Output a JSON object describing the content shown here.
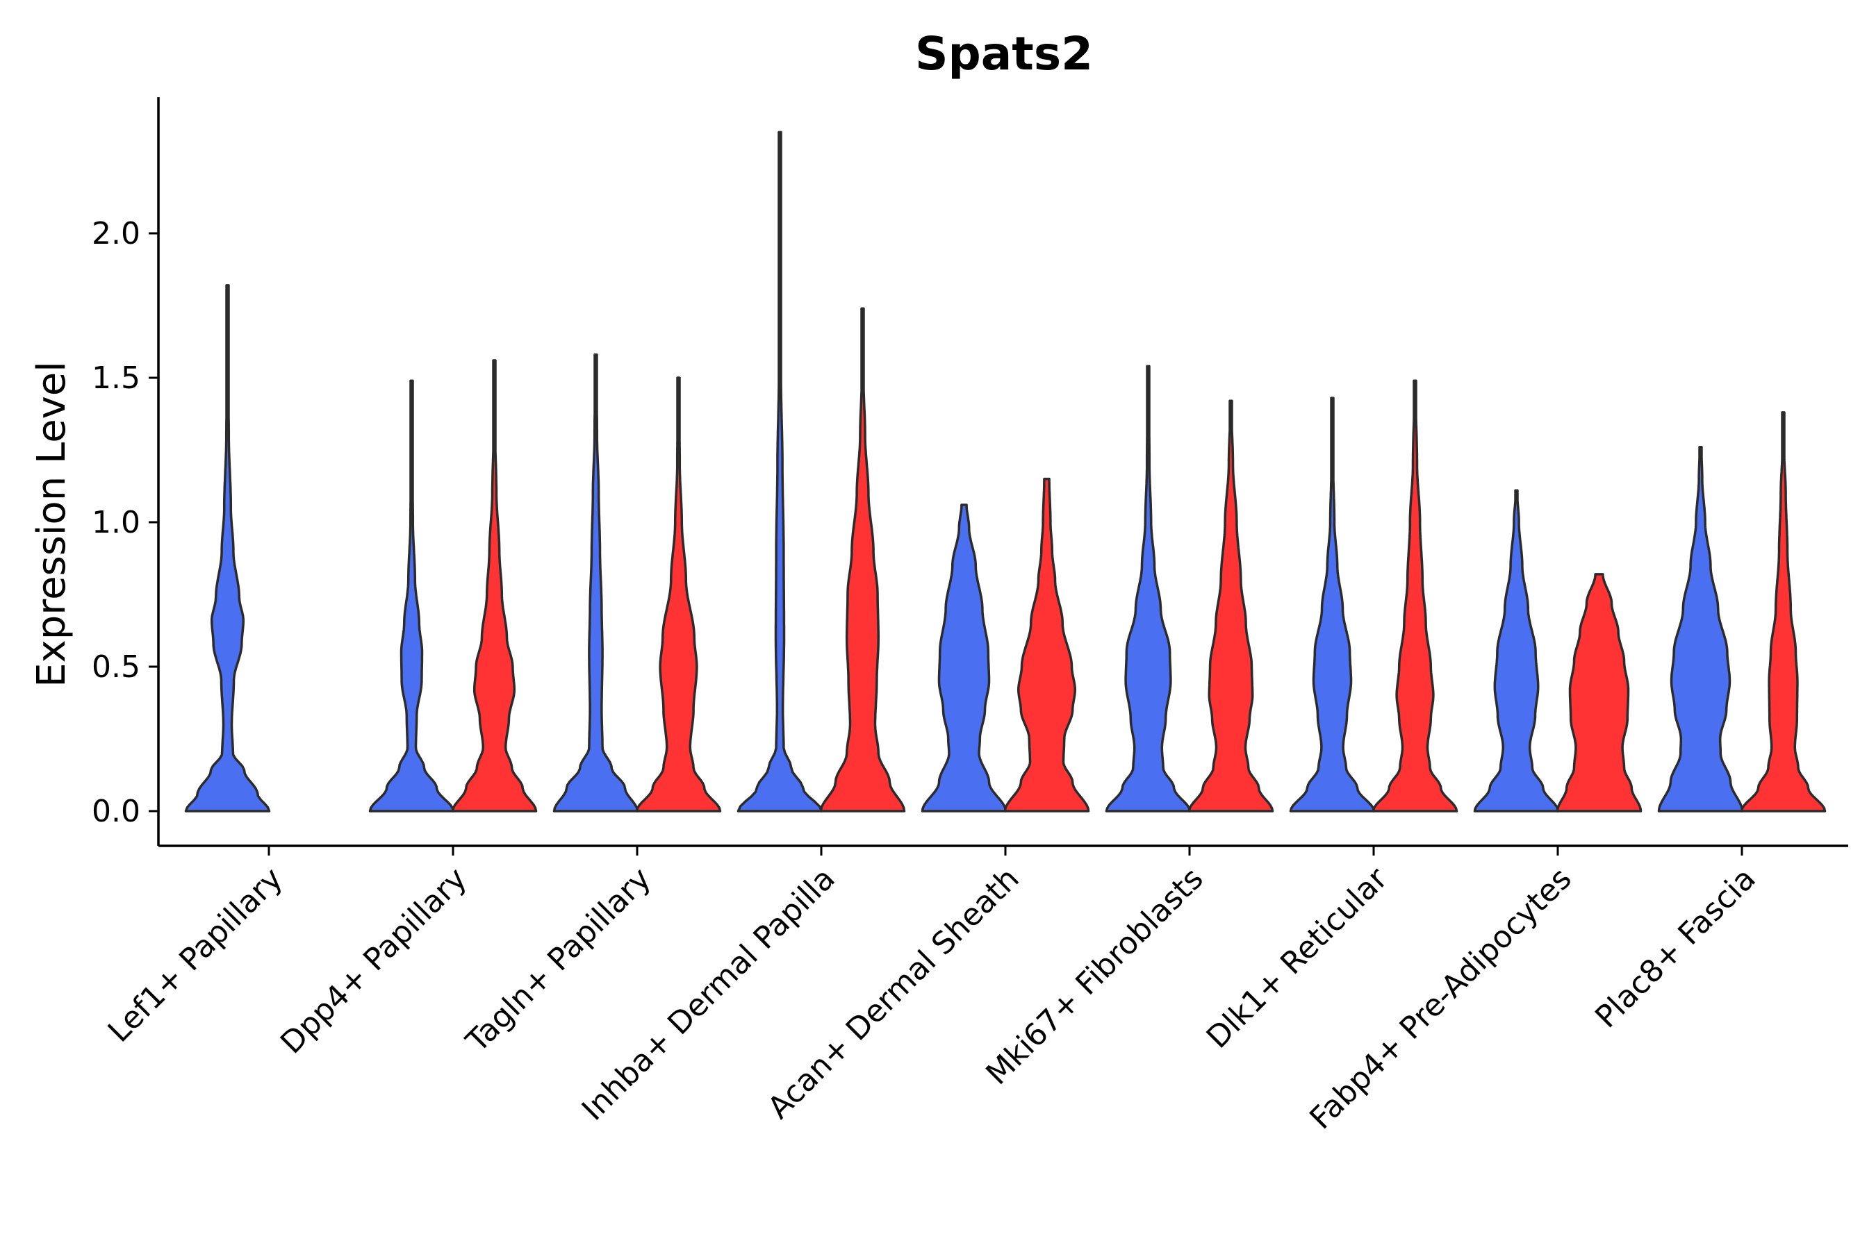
{
  "chart_data": {
    "type": "violin",
    "title": "Spats2",
    "ylabel": "Expression Level",
    "xlabel": "",
    "ylim": [
      -0.12,
      2.48
    ],
    "yticks": [
      0.0,
      0.5,
      1.0,
      1.5,
      2.0
    ],
    "ytick_labels": [
      "0.0",
      "0.5",
      "1.0",
      "1.5",
      "2.0"
    ],
    "grid": false,
    "legend": "none",
    "colors": {
      "group1": "#4a6ff0",
      "group2": "#ff3333",
      "outline": "#2b2b2b"
    },
    "categories": [
      "Lef1+ Papillary",
      "Dpp4+ Papillary",
      "Tagln+ Papillary",
      "Inhba+ Dermal Papilla",
      "Acan+ Dermal Sheath",
      "Mki67+ Fibroblasts",
      "Dlk1+ Reticular",
      "Fabp4+ Pre-Adipocytes",
      "Plac8+ Fascia"
    ],
    "series": [
      {
        "name": "group1",
        "color": "#4a6ff0",
        "violins": [
          {
            "max": 1.82,
            "profile": [
              [
                0.0,
                1.0
              ],
              [
                0.06,
                0.72
              ],
              [
                0.14,
                0.4
              ],
              [
                0.2,
                0.13
              ],
              [
                0.3,
                0.1
              ],
              [
                0.45,
                0.15
              ],
              [
                0.58,
                0.34
              ],
              [
                0.66,
                0.38
              ],
              [
                0.74,
                0.28
              ],
              [
                0.9,
                0.14
              ],
              [
                1.05,
                0.08
              ],
              [
                1.3,
                0.03
              ],
              [
                1.5,
                0.012
              ],
              [
                1.82,
                0.006
              ]
            ]
          },
          {
            "max": 1.49,
            "profile": [
              [
                0.0,
                1.0
              ],
              [
                0.08,
                0.6
              ],
              [
                0.15,
                0.3
              ],
              [
                0.22,
                0.1
              ],
              [
                0.33,
                0.12
              ],
              [
                0.45,
                0.24
              ],
              [
                0.55,
                0.25
              ],
              [
                0.65,
                0.18
              ],
              [
                0.8,
                0.08
              ],
              [
                1.0,
                0.03
              ],
              [
                1.2,
                0.015
              ],
              [
                1.49,
                0.006
              ]
            ]
          },
          {
            "max": 1.58,
            "profile": [
              [
                0.0,
                1.0
              ],
              [
                0.08,
                0.7
              ],
              [
                0.15,
                0.38
              ],
              [
                0.22,
                0.16
              ],
              [
                0.35,
                0.14
              ],
              [
                0.55,
                0.16
              ],
              [
                0.7,
                0.14
              ],
              [
                0.9,
                0.1
              ],
              [
                1.1,
                0.07
              ],
              [
                1.3,
                0.03
              ],
              [
                1.58,
                0.006
              ]
            ]
          },
          {
            "max": 2.35,
            "profile": [
              [
                0.0,
                1.0
              ],
              [
                0.08,
                0.55
              ],
              [
                0.15,
                0.27
              ],
              [
                0.22,
                0.09
              ],
              [
                0.35,
                0.07
              ],
              [
                0.6,
                0.1
              ],
              [
                0.9,
                0.09
              ],
              [
                1.2,
                0.06
              ],
              [
                1.5,
                0.025
              ],
              [
                1.8,
                0.01
              ],
              [
                2.35,
                0.004
              ]
            ]
          },
          {
            "max": 1.06,
            "profile": [
              [
                0.0,
                1.0
              ],
              [
                0.1,
                0.6
              ],
              [
                0.2,
                0.36
              ],
              [
                0.25,
                0.38
              ],
              [
                0.35,
                0.5
              ],
              [
                0.45,
                0.6
              ],
              [
                0.55,
                0.58
              ],
              [
                0.7,
                0.44
              ],
              [
                0.85,
                0.28
              ],
              [
                0.98,
                0.12
              ],
              [
                1.06,
                0.06
              ]
            ]
          },
          {
            "max": 1.54,
            "profile": [
              [
                0.0,
                1.0
              ],
              [
                0.08,
                0.62
              ],
              [
                0.15,
                0.36
              ],
              [
                0.22,
                0.33
              ],
              [
                0.32,
                0.42
              ],
              [
                0.45,
                0.54
              ],
              [
                0.55,
                0.52
              ],
              [
                0.7,
                0.3
              ],
              [
                0.85,
                0.15
              ],
              [
                1.0,
                0.07
              ],
              [
                1.2,
                0.03
              ],
              [
                1.54,
                0.006
              ]
            ]
          },
          {
            "max": 1.43,
            "profile": [
              [
                0.0,
                1.0
              ],
              [
                0.08,
                0.6
              ],
              [
                0.15,
                0.33
              ],
              [
                0.22,
                0.26
              ],
              [
                0.33,
                0.35
              ],
              [
                0.45,
                0.45
              ],
              [
                0.55,
                0.42
              ],
              [
                0.7,
                0.25
              ],
              [
                0.85,
                0.12
              ],
              [
                1.0,
                0.05
              ],
              [
                1.2,
                0.02
              ],
              [
                1.43,
                0.006
              ]
            ]
          },
          {
            "max": 1.11,
            "profile": [
              [
                0.0,
                1.0
              ],
              [
                0.08,
                0.64
              ],
              [
                0.15,
                0.38
              ],
              [
                0.22,
                0.32
              ],
              [
                0.33,
                0.45
              ],
              [
                0.43,
                0.52
              ],
              [
                0.55,
                0.46
              ],
              [
                0.7,
                0.28
              ],
              [
                0.85,
                0.14
              ],
              [
                1.0,
                0.06
              ],
              [
                1.11,
                0.012
              ]
            ]
          },
          {
            "max": 1.26,
            "profile": [
              [
                0.0,
                1.0
              ],
              [
                0.1,
                0.72
              ],
              [
                0.2,
                0.48
              ],
              [
                0.25,
                0.47
              ],
              [
                0.35,
                0.62
              ],
              [
                0.45,
                0.7
              ],
              [
                0.55,
                0.64
              ],
              [
                0.7,
                0.42
              ],
              [
                0.85,
                0.24
              ],
              [
                1.0,
                0.11
              ],
              [
                1.15,
                0.04
              ],
              [
                1.26,
                0.02
              ]
            ]
          }
        ]
      },
      {
        "name": "group2",
        "color": "#ff3333",
        "violins": [
          null,
          {
            "max": 1.56,
            "profile": [
              [
                0.0,
                1.0
              ],
              [
                0.08,
                0.68
              ],
              [
                0.15,
                0.42
              ],
              [
                0.22,
                0.27
              ],
              [
                0.32,
                0.35
              ],
              [
                0.42,
                0.48
              ],
              [
                0.5,
                0.44
              ],
              [
                0.6,
                0.3
              ],
              [
                0.75,
                0.18
              ],
              [
                0.9,
                0.12
              ],
              [
                1.1,
                0.05
              ],
              [
                1.3,
                0.02
              ],
              [
                1.56,
                0.006
              ]
            ]
          },
          {
            "max": 1.5,
            "profile": [
              [
                0.0,
                1.0
              ],
              [
                0.08,
                0.62
              ],
              [
                0.15,
                0.36
              ],
              [
                0.22,
                0.28
              ],
              [
                0.35,
                0.36
              ],
              [
                0.5,
                0.44
              ],
              [
                0.6,
                0.38
              ],
              [
                0.8,
                0.18
              ],
              [
                1.0,
                0.08
              ],
              [
                1.2,
                0.03
              ],
              [
                1.5,
                0.006
              ]
            ]
          },
          {
            "max": 1.74,
            "profile": [
              [
                0.0,
                1.0
              ],
              [
                0.1,
                0.65
              ],
              [
                0.2,
                0.38
              ],
              [
                0.3,
                0.3
              ],
              [
                0.45,
                0.34
              ],
              [
                0.6,
                0.38
              ],
              [
                0.75,
                0.36
              ],
              [
                0.9,
                0.26
              ],
              [
                1.1,
                0.14
              ],
              [
                1.3,
                0.06
              ],
              [
                1.5,
                0.02
              ],
              [
                1.74,
                0.006
              ]
            ]
          },
          {
            "max": 1.15,
            "profile": [
              [
                0.0,
                1.0
              ],
              [
                0.1,
                0.62
              ],
              [
                0.17,
                0.4
              ],
              [
                0.25,
                0.42
              ],
              [
                0.35,
                0.62
              ],
              [
                0.42,
                0.68
              ],
              [
                0.5,
                0.6
              ],
              [
                0.65,
                0.38
              ],
              [
                0.8,
                0.2
              ],
              [
                0.9,
                0.13
              ],
              [
                1.0,
                0.09
              ],
              [
                1.15,
                0.06
              ]
            ]
          },
          {
            "max": 1.42,
            "profile": [
              [
                0.0,
                1.0
              ],
              [
                0.08,
                0.67
              ],
              [
                0.15,
                0.42
              ],
              [
                0.22,
                0.35
              ],
              [
                0.32,
                0.45
              ],
              [
                0.4,
                0.52
              ],
              [
                0.5,
                0.5
              ],
              [
                0.65,
                0.36
              ],
              [
                0.8,
                0.24
              ],
              [
                1.0,
                0.14
              ],
              [
                1.2,
                0.05
              ],
              [
                1.42,
                0.006
              ]
            ]
          },
          {
            "max": 1.49,
            "profile": [
              [
                0.0,
                1.0
              ],
              [
                0.08,
                0.62
              ],
              [
                0.15,
                0.36
              ],
              [
                0.22,
                0.3
              ],
              [
                0.32,
                0.38
              ],
              [
                0.4,
                0.44
              ],
              [
                0.5,
                0.38
              ],
              [
                0.65,
                0.26
              ],
              [
                0.8,
                0.18
              ],
              [
                1.0,
                0.12
              ],
              [
                1.2,
                0.05
              ],
              [
                1.49,
                0.006
              ]
            ]
          },
          {
            "max": 0.82,
            "profile": [
              [
                0.0,
                1.0
              ],
              [
                0.08,
                0.78
              ],
              [
                0.15,
                0.6
              ],
              [
                0.22,
                0.56
              ],
              [
                0.32,
                0.68
              ],
              [
                0.42,
                0.7
              ],
              [
                0.52,
                0.6
              ],
              [
                0.62,
                0.46
              ],
              [
                0.72,
                0.3
              ],
              [
                0.82,
                0.09
              ]
            ]
          },
          {
            "max": 1.38,
            "profile": [
              [
                0.0,
                1.0
              ],
              [
                0.08,
                0.6
              ],
              [
                0.15,
                0.36
              ],
              [
                0.22,
                0.28
              ],
              [
                0.32,
                0.33
              ],
              [
                0.45,
                0.34
              ],
              [
                0.55,
                0.3
              ],
              [
                0.7,
                0.18
              ],
              [
                0.9,
                0.1
              ],
              [
                1.1,
                0.06
              ],
              [
                1.25,
                0.02
              ],
              [
                1.38,
                0.006
              ]
            ]
          }
        ]
      }
    ]
  }
}
